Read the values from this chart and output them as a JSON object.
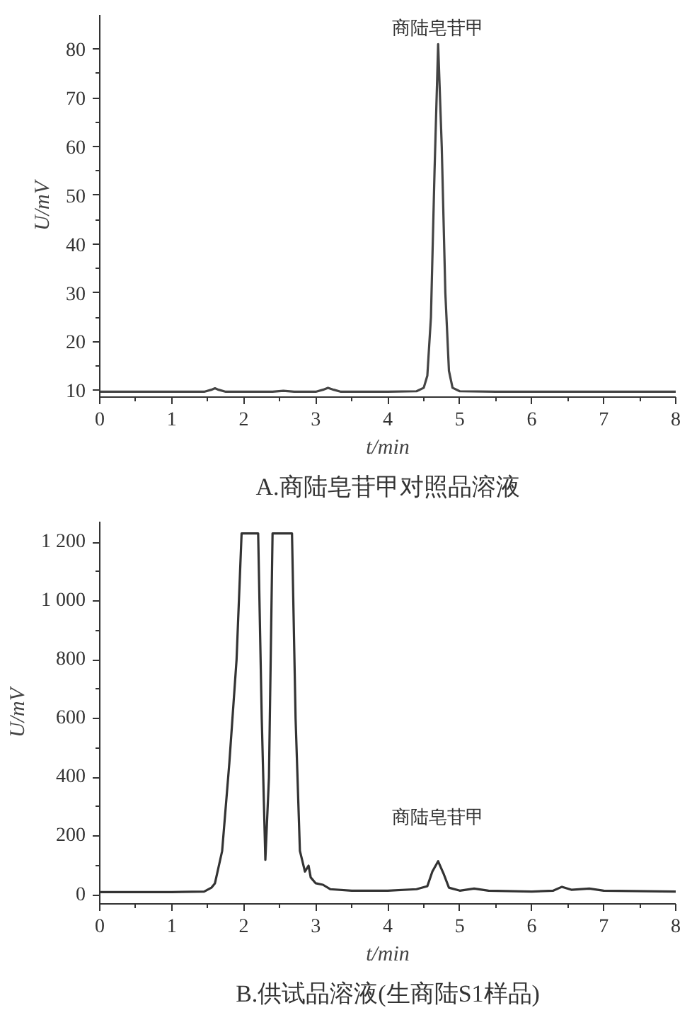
{
  "chart_data": [
    {
      "type": "line",
      "title": "A.商陆皂苷甲对照品溶液",
      "xlabel": "t/min",
      "ylabel": "U/mV",
      "x": [
        0,
        0.5,
        1.0,
        1.45,
        1.55,
        1.6,
        1.65,
        1.75,
        2.0,
        2.4,
        2.55,
        2.7,
        3.0,
        3.1,
        3.17,
        3.25,
        3.35,
        3.6,
        4.0,
        4.4,
        4.5,
        4.55,
        4.6,
        4.65,
        4.7,
        4.75,
        4.8,
        4.85,
        4.9,
        5.0,
        5.5,
        6.0,
        7.0,
        8.0
      ],
      "series": [
        {
          "color": "#444444",
          "values": [
            9.7,
            9.7,
            9.7,
            9.7,
            10.1,
            10.4,
            10.1,
            9.7,
            9.7,
            9.7,
            9.9,
            9.7,
            9.7,
            10.1,
            10.5,
            10.1,
            9.7,
            9.7,
            9.7,
            9.8,
            10.5,
            13,
            25,
            55,
            81,
            60,
            30,
            14,
            10.5,
            9.8,
            9.7,
            9.7,
            9.7,
            9.7
          ]
        }
      ],
      "xlim": [
        0,
        8
      ],
      "ylim": [
        8.6,
        87
      ],
      "xticks": [
        0,
        1,
        2,
        3,
        4,
        5,
        6,
        7,
        8
      ],
      "yticks": [
        10,
        20,
        30,
        40,
        50,
        60,
        70,
        80
      ],
      "annotations": [
        {
          "text": "商陆皂苷甲",
          "x": 4.7,
          "y": 81
        }
      ],
      "grid": false,
      "line_style": "solid"
    },
    {
      "type": "line",
      "title": "B.供试品溶液(生商陆S1样品)",
      "xlabel": "t/min",
      "ylabel": "U/mV",
      "x": [
        0,
        1.0,
        1.45,
        1.55,
        1.6,
        1.7,
        1.8,
        1.9,
        1.97,
        2.2,
        2.25,
        2.3,
        2.35,
        2.4,
        2.67,
        2.72,
        2.78,
        2.85,
        2.9,
        2.93,
        3.0,
        3.1,
        3.2,
        3.5,
        4.0,
        4.4,
        4.55,
        4.62,
        4.7,
        4.78,
        4.85,
        5.0,
        5.2,
        5.4,
        6.0,
        6.3,
        6.42,
        6.55,
        6.8,
        7.0,
        8.0
      ],
      "series": [
        {
          "color": "#333333",
          "values": [
            10,
            10,
            12,
            25,
            40,
            150,
            450,
            800,
            1230,
            1230,
            600,
            120,
            400,
            1230,
            1230,
            600,
            150,
            80,
            100,
            60,
            40,
            35,
            20,
            15,
            15,
            20,
            30,
            80,
            115,
            70,
            25,
            15,
            22,
            15,
            12,
            15,
            28,
            18,
            22,
            15,
            12
          ]
        }
      ],
      "xlim": [
        0,
        8
      ],
      "ylim": [
        -30,
        1270
      ],
      "xticks": [
        0,
        1,
        2,
        3,
        4,
        5,
        6,
        7,
        8
      ],
      "yticks": [
        0,
        200,
        400,
        600,
        800,
        {
          "value": 1000,
          "label": "1 000"
        },
        {
          "value": 1200,
          "label": "1 200"
        }
      ],
      "annotations": [
        {
          "text": "商陆皂苷甲",
          "x": 4.7,
          "y": 115
        }
      ],
      "grid": false,
      "line_style": "solid"
    }
  ]
}
